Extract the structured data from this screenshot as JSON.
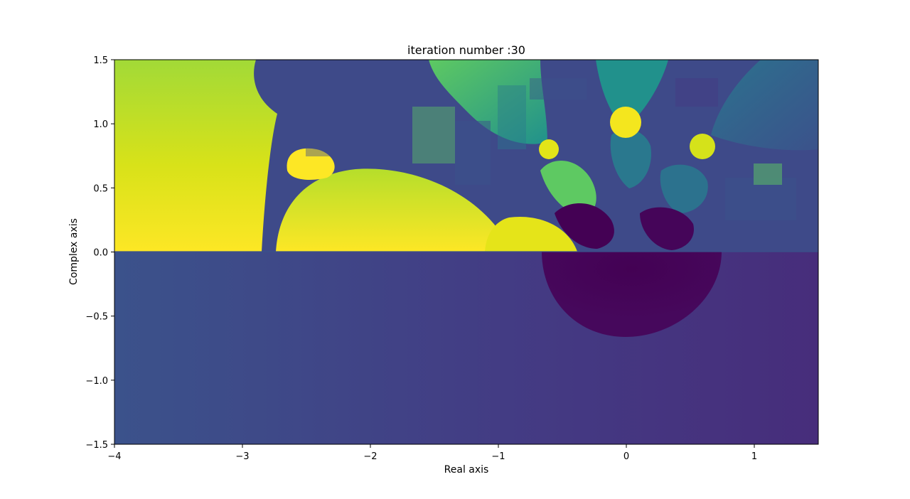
{
  "chart_data": {
    "type": "heatmap",
    "title": "iteration number :30",
    "xlabel": "Real axis",
    "ylabel": "Complex axis",
    "xlim": [
      -4,
      1.5
    ],
    "ylim": [
      -1.5,
      1.5
    ],
    "x_ticks": [
      -4,
      -3,
      -2,
      -1,
      0,
      1
    ],
    "x_tick_labels": [
      "−4",
      "−3",
      "−2",
      "−1",
      "0",
      "1"
    ],
    "y_ticks": [
      -1.5,
      -1.0,
      -0.5,
      0.0,
      0.5,
      1.0,
      1.5
    ],
    "y_tick_labels": [
      "−1.5",
      "−1.0",
      "−0.5",
      "0.0",
      "0.5",
      "1.0",
      "1.5"
    ],
    "colormap": "viridis",
    "colors": {
      "low": "#440154",
      "mid_low": "#3b528b",
      "mid": "#21918c",
      "mid_high": "#5ec962",
      "high": "#fde725"
    },
    "grid": false,
    "legend": "none"
  }
}
